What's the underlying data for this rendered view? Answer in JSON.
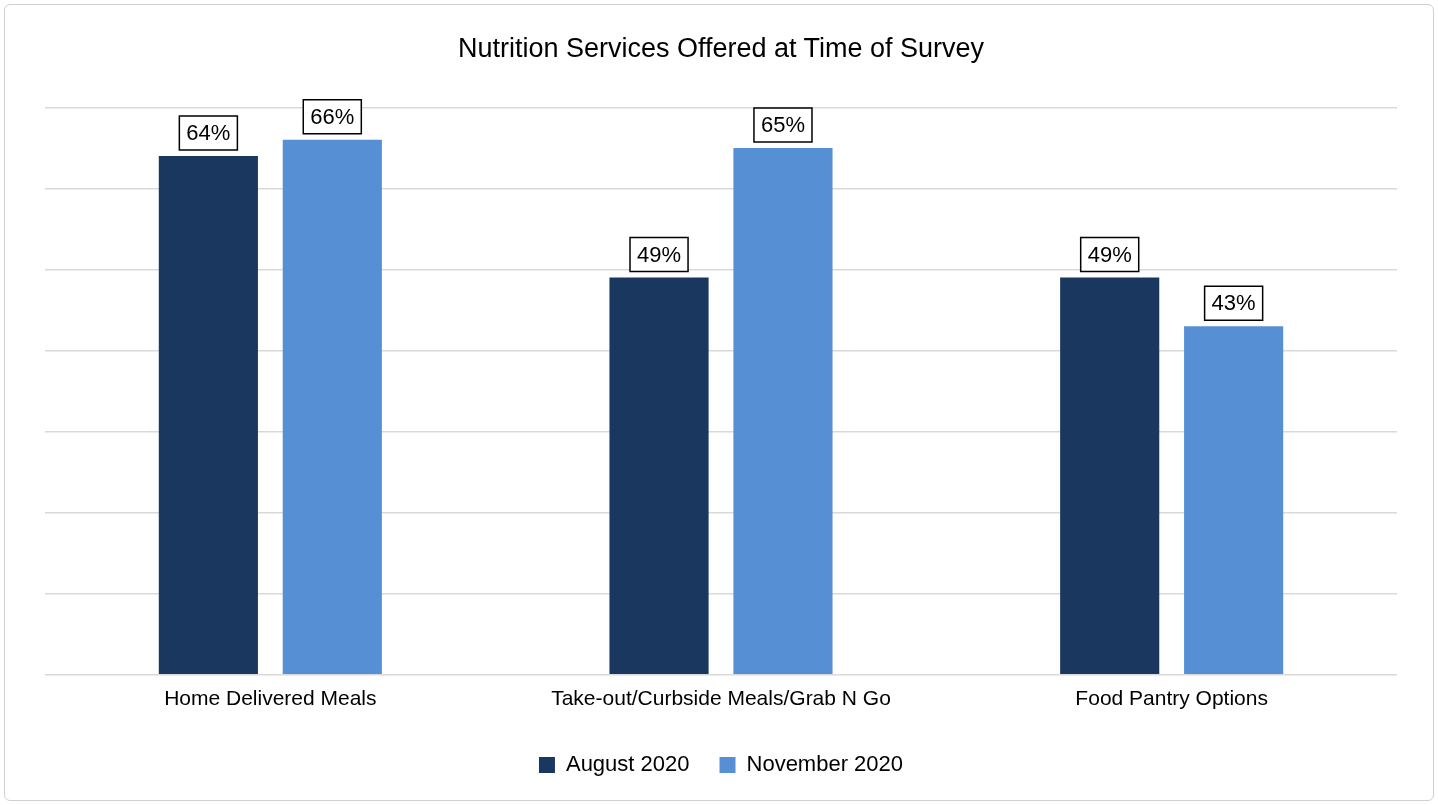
{
  "chart_data": {
    "type": "bar",
    "title": "Nutrition Services Offered at Time of Survey",
    "categories": [
      "Home Delivered Meals",
      "Take-out/Curbside Meals/Grab N Go",
      "Food Pantry Options"
    ],
    "series": [
      {
        "name": "August 2020",
        "color": "#1a3760",
        "values": [
          64,
          49,
          49
        ],
        "value_labels": [
          "64%",
          "49%",
          "49%"
        ]
      },
      {
        "name": "November 2020",
        "color": "#578fd5",
        "values": [
          66,
          65,
          43
        ],
        "value_labels": [
          "66%",
          "65%",
          "43%"
        ]
      }
    ],
    "ylim": [
      0,
      70
    ],
    "yticks": [
      {
        "value": 0,
        "label": null
      },
      {
        "value": 10,
        "label": null
      },
      {
        "value": 20,
        "label": null
      },
      {
        "value": 30,
        "label": null
      },
      {
        "value": 40,
        "label": null
      },
      {
        "value": 50,
        "label": null
      },
      {
        "value": 60,
        "label": null
      },
      {
        "value": 70,
        "label": null
      }
    ],
    "grid": "y",
    "legend": "bottom",
    "tick_labels": "x"
  }
}
